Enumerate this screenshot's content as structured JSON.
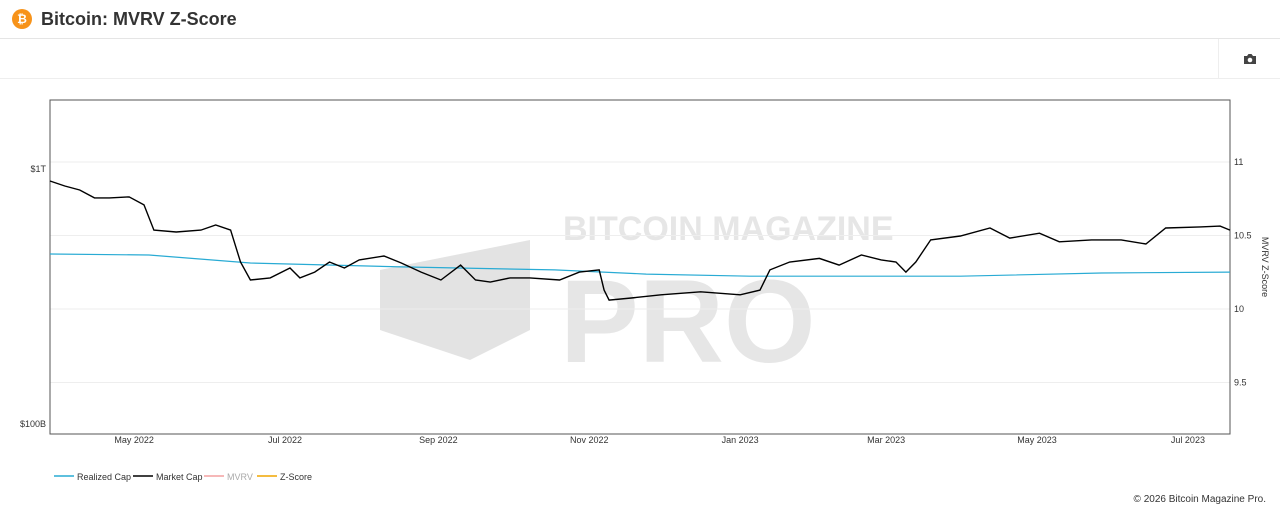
{
  "header": {
    "title": "Bitcoin: MVRV Z-Score",
    "logo_glyph": "₿"
  },
  "toolbar": {
    "camera_icon": "camera-icon"
  },
  "footer": {
    "copyright": "© 2026 Bitcoin Magazine Pro."
  },
  "watermark": {
    "line1": "BITCOIN MAGAZINE",
    "line2": "PRO"
  },
  "chart_data": {
    "type": "line",
    "title": "Bitcoin: MVRV Z-Score",
    "x_range": [
      "2022-03-28",
      "2023-07-18"
    ],
    "x_ticks": [
      [
        "2022-05-01",
        "May 2022"
      ],
      [
        "2022-07-01",
        "Jul 2022"
      ],
      [
        "2022-09-01",
        "Sep 2022"
      ],
      [
        "2022-11-01",
        "Nov 2022"
      ],
      [
        "2023-01-01",
        "Jan 2023"
      ],
      [
        "2023-03-01",
        "Mar 2023"
      ],
      [
        "2023-05-01",
        "May 2023"
      ],
      [
        "2023-07-01",
        "Jul 2023"
      ]
    ],
    "y_left": {
      "scale": "log",
      "unit": "USD billions",
      "range": [
        100,
        1000
      ],
      "ticks": [
        [
          1000,
          "$1T"
        ],
        [
          100,
          "$100B"
        ]
      ]
    },
    "y_right": {
      "label": "MVRV Z-Score",
      "range": [
        9.27,
        11.5
      ],
      "ticks": [
        [
          11,
          "11"
        ],
        [
          10.5,
          "10.5"
        ],
        [
          10,
          "10"
        ],
        [
          9.5,
          "9.5"
        ]
      ]
    },
    "legend": {
      "placement": "bottom-left"
    },
    "series": [
      {
        "name": "Realized Cap",
        "color": "#29abd4",
        "axis": "left",
        "visible": true,
        "x": [
          "2022-03-28",
          "2022-05-07",
          "2022-06-17",
          "2022-08-17",
          "2022-10-18",
          "2022-11-24",
          "2023-01-05",
          "2023-03-07",
          "2023-03-31",
          "2023-05-27",
          "2023-07-18"
        ],
        "y": [
          464,
          460,
          428,
          413,
          402,
          387,
          380,
          380,
          380,
          391,
          394
        ]
      },
      {
        "name": "Market Cap",
        "color": "#000000",
        "axis": "left",
        "visible": true,
        "x": [
          "2022-03-28",
          "2022-04-03",
          "2022-04-09",
          "2022-04-15",
          "2022-04-21",
          "2022-04-29",
          "2022-05-05",
          "2022-05-09",
          "2022-05-18",
          "2022-05-28",
          "2022-06-03",
          "2022-06-09",
          "2022-06-13",
          "2022-06-17",
          "2022-06-25",
          "2022-07-03",
          "2022-07-07",
          "2022-07-13",
          "2022-07-19",
          "2022-07-25",
          "2022-07-31",
          "2022-08-10",
          "2022-08-17",
          "2022-08-25",
          "2022-09-02",
          "2022-09-10",
          "2022-09-16",
          "2022-09-22",
          "2022-09-30",
          "2022-10-08",
          "2022-10-20",
          "2022-10-28",
          "2022-11-05",
          "2022-11-07",
          "2022-11-09",
          "2022-11-18",
          "2022-11-30",
          "2022-12-16",
          "2023-01-01",
          "2023-01-09",
          "2023-01-13",
          "2023-01-21",
          "2023-02-02",
          "2023-02-10",
          "2023-02-19",
          "2023-02-27",
          "2023-03-05",
          "2023-03-09",
          "2023-03-13",
          "2023-03-19",
          "2023-03-31",
          "2023-04-12",
          "2023-04-20",
          "2023-05-02",
          "2023-05-10",
          "2023-05-23",
          "2023-06-04",
          "2023-06-14",
          "2023-06-22",
          "2023-07-06",
          "2023-07-14",
          "2023-07-18"
        ],
        "y": [
          897,
          858,
          827,
          770,
          770,
          777,
          723,
          576,
          566,
          576,
          603,
          576,
          432,
          367,
          374,
          409,
          374,
          394,
          432,
          409,
          440,
          456,
          428,
          394,
          367,
          420,
          367,
          360,
          374,
          374,
          367,
          394,
          402,
          335,
          306,
          312,
          321,
          330,
          321,
          335,
          402,
          432,
          446,
          420,
          460,
          440,
          432,
          394,
          432,
          527,
          546,
          587,
          536,
          560,
          518,
          527,
          527,
          508,
          587,
          593,
          597,
          576
        ]
      },
      {
        "name": "MVRV",
        "color": "#f4a0a0",
        "axis": "right",
        "visible": false,
        "x": [],
        "y": []
      },
      {
        "name": "Z-Score",
        "color": "#f0a500",
        "axis": "right",
        "visible": true,
        "x": [],
        "y": []
      }
    ]
  }
}
